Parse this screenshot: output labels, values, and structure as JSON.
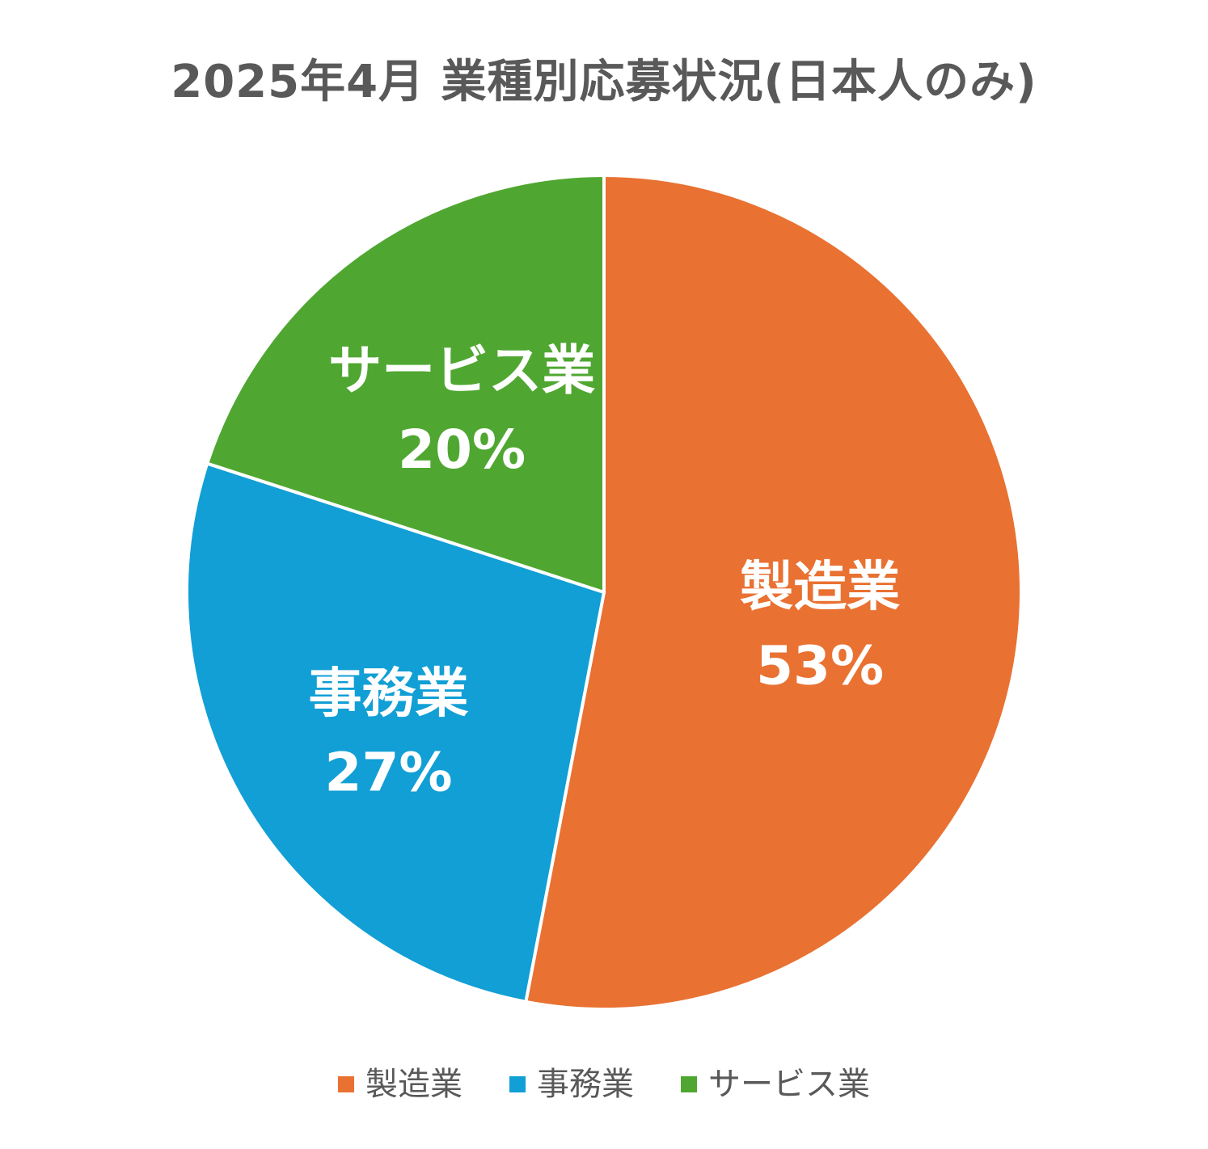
{
  "chart_data": {
    "type": "pie",
    "title": "2025年4月 業種別応募状況(日本人のみ)",
    "categories": [
      "製造業",
      "事務業",
      "サービス業"
    ],
    "values": [
      53,
      27,
      20
    ],
    "value_labels": [
      "53%",
      "27%",
      "20%"
    ],
    "colors": [
      "#E97132",
      "#119FD5",
      "#4FA731"
    ],
    "start_angle": "12 o'clock",
    "direction": "clockwise",
    "legend_position": "bottom"
  }
}
